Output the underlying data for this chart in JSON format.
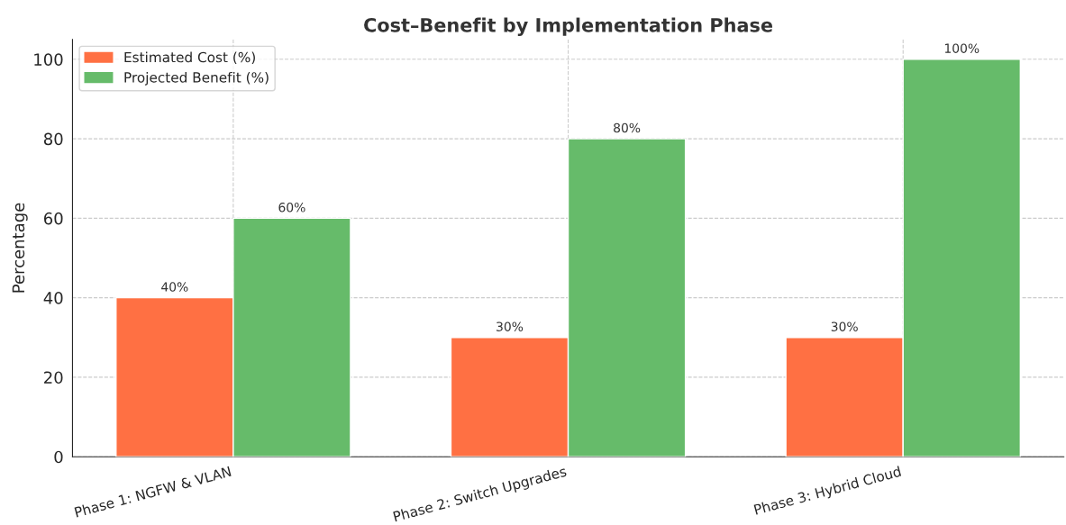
{
  "chart_data": {
    "type": "bar",
    "title": "Cost–Benefit by Implementation Phase",
    "ylabel": "Percentage",
    "categories": [
      "Phase 1: NGFW & VLAN",
      "Phase 2: Switch Upgrades",
      "Phase 3: Hybrid Cloud"
    ],
    "series": [
      {
        "name": "Estimated Cost (%)",
        "color": "#ff7043",
        "values": [
          40,
          30,
          30
        ],
        "value_labels": [
          "40%",
          "30%",
          "30%"
        ]
      },
      {
        "name": "Projected Benefit (%)",
        "color": "#66bb6a",
        "values": [
          60,
          80,
          100
        ],
        "value_labels": [
          "60%",
          "80%",
          "100%"
        ]
      }
    ],
    "ylim": [
      0,
      105
    ],
    "yticks": [
      0,
      20,
      40,
      60,
      80,
      100
    ],
    "grid": true,
    "legend": "top left"
  }
}
